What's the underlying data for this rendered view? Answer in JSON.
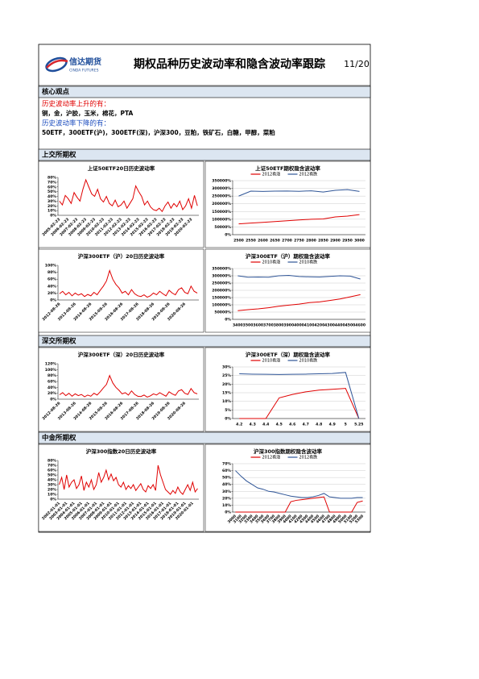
{
  "header": {
    "logo_cn": "信达期货",
    "logo_en": "CINDA FUTURES",
    "title": "期权品种历史波动率和隐含波动率跟踪",
    "date": "11/20"
  },
  "core": {
    "heading": "核心观点",
    "rise_label": "历史波动率上升的有：",
    "rise_items": "铜，金，沪胶，玉米，棉花，PTA",
    "fall_label": "历史波动率下降的有：",
    "fall_items": "50ETF，300ETF(沪)，300ETF(深)，沪深300，豆粕，铁矿石，白糖，甲醇，菜粕"
  },
  "sections": [
    "上交所期权",
    "深交所期权",
    "中金所期权"
  ],
  "chart_data": [
    {
      "type": "line",
      "title": "上证50ETF20日历史波动率",
      "color": "#e00000",
      "grid": false,
      "categories": [
        "2005-02-23",
        null,
        null,
        "2006-02-23",
        null,
        null,
        "2007-02-23",
        null,
        null,
        "2008-02-23",
        null,
        null,
        "2009-02-23",
        null,
        null,
        "2010-02-23",
        null,
        null,
        "2011-02-23",
        null,
        null,
        "2012-02-23",
        null,
        null,
        "2013-02-23",
        null,
        null,
        "2014-02-23",
        null,
        null,
        "2015-02-23",
        null,
        null,
        "2016-02-23",
        null,
        null,
        "2017-02-23",
        null,
        null,
        "2018-02-23",
        null,
        null,
        "2019-02-23",
        null,
        null,
        "2020-02-23",
        null,
        null
      ],
      "values": [
        30,
        22,
        42,
        35,
        25,
        48,
        38,
        30,
        55,
        75,
        60,
        45,
        40,
        55,
        35,
        28,
        40,
        25,
        20,
        32,
        18,
        22,
        30,
        15,
        25,
        35,
        62,
        50,
        40,
        22,
        30,
        18,
        12,
        10,
        15,
        8,
        20,
        28,
        15,
        25,
        18,
        30,
        12,
        20,
        35,
        15,
        42,
        20
      ],
      "ylim": [
        0,
        80
      ],
      "yticks": [
        {
          "value": 0,
          "label": "0%"
        },
        {
          "value": 10,
          "label": "10%"
        },
        {
          "value": 20,
          "label": "20%"
        },
        {
          "value": 30,
          "label": "30%"
        },
        {
          "value": 40,
          "label": "40%"
        },
        {
          "value": 50,
          "label": "50%"
        },
        {
          "value": 60,
          "label": "60%"
        },
        {
          "value": 70,
          "label": "70%"
        },
        {
          "value": 80,
          "label": "80%"
        }
      ]
    },
    {
      "type": "line",
      "title": "上证50ETF期权隐含波动率",
      "grid": true,
      "categories": [
        "2500",
        "2550",
        "2600",
        "2650",
        "2700",
        "2750",
        "2800",
        "2850",
        "2900",
        "2950",
        "3000"
      ],
      "series": [
        {
          "name": "2012看涨",
          "color": "#e00000",
          "values": [
            70000,
            75000,
            80000,
            85000,
            90000,
            95000,
            100000,
            102000,
            115000,
            120000,
            130000
          ]
        },
        {
          "name": "2012看跌",
          "color": "#2f5597",
          "values": [
            250000,
            282000,
            280000,
            282000,
            283000,
            281000,
            284000,
            276000,
            287000,
            292000,
            280000
          ]
        }
      ],
      "ylim": [
        0,
        350000
      ],
      "yticks": [
        {
          "value": 0,
          "label": "0%"
        },
        {
          "value": 50000,
          "label": "50000%"
        },
        {
          "value": 100000,
          "label": "100000%"
        },
        {
          "value": 150000,
          "label": "150000%"
        },
        {
          "value": 200000,
          "label": "200000%"
        },
        {
          "value": 250000,
          "label": "250000%"
        },
        {
          "value": 300000,
          "label": "300000%"
        },
        {
          "value": 350000,
          "label": "350000%"
        }
      ]
    },
    {
      "type": "line",
      "title": "沪深300ETF（沪）20日历史波动率",
      "color": "#e00000",
      "grid": false,
      "categories": [
        "2012-08-26",
        null,
        null,
        null,
        null,
        "2013-08-26",
        null,
        null,
        null,
        null,
        "2014-08-26",
        null,
        null,
        null,
        null,
        "2015-08-26",
        null,
        null,
        null,
        null,
        "2016-08-26",
        null,
        null,
        null,
        null,
        "2017-08-26",
        null,
        null,
        null,
        null,
        "2018-08-26",
        null,
        null,
        null,
        null,
        "2019-08-26",
        null,
        null,
        null,
        null,
        "2020-08-26",
        null,
        null,
        null,
        null
      ],
      "values": [
        18,
        25,
        15,
        22,
        12,
        20,
        14,
        18,
        10,
        16,
        12,
        22,
        15,
        28,
        40,
        55,
        85,
        60,
        45,
        35,
        20,
        25,
        15,
        30,
        18,
        12,
        10,
        15,
        8,
        12,
        20,
        15,
        25,
        18,
        12,
        28,
        20,
        15,
        30,
        35,
        22,
        18,
        40,
        25,
        20
      ],
      "ylim": [
        0,
        100
      ],
      "yticks": [
        {
          "value": 0,
          "label": "0%"
        },
        {
          "value": 20,
          "label": "20%"
        },
        {
          "value": 40,
          "label": "40%"
        },
        {
          "value": 60,
          "label": "60%"
        },
        {
          "value": 80,
          "label": "80%"
        },
        {
          "value": 100,
          "label": "100%"
        }
      ]
    },
    {
      "type": "line",
      "title": "沪深300ETF（沪）期权隐含波动率",
      "grid": true,
      "categories": [
        "3400",
        "3500",
        "3600",
        "3700",
        "3800",
        "3900",
        "4000",
        "4100",
        "4200",
        "4300",
        "4400",
        "4500",
        "4600"
      ],
      "series": [
        {
          "name": "2010看涨",
          "color": "#e00000",
          "values": [
            60000,
            67000,
            72000,
            80000,
            90000,
            98000,
            105000,
            115000,
            120000,
            130000,
            140000,
            155000,
            170000
          ]
        },
        {
          "name": "2010看跌",
          "color": "#2f5597",
          "values": [
            300000,
            290000,
            292000,
            290000,
            300000,
            303000,
            295000,
            293000,
            292000,
            296000,
            300000,
            298000,
            278000
          ]
        }
      ],
      "ylim": [
        0,
        350000
      ],
      "yticks": [
        {
          "value": 0,
          "label": "0%"
        },
        {
          "value": 50000,
          "label": "50000%"
        },
        {
          "value": 100000,
          "label": "100000%"
        },
        {
          "value": 150000,
          "label": "150000%"
        },
        {
          "value": 200000,
          "label": "200000%"
        },
        {
          "value": 250000,
          "label": "250000%"
        },
        {
          "value": 300000,
          "label": "300000%"
        },
        {
          "value": 350000,
          "label": "350000%"
        }
      ]
    },
    {
      "type": "line",
      "title": "沪深300ETF（深）20日历史波动率",
      "color": "#e00000",
      "grid": false,
      "categories": [
        "2012-08-26",
        null,
        null,
        null,
        null,
        "2013-08-26",
        null,
        null,
        null,
        null,
        "2014-08-26",
        null,
        null,
        null,
        null,
        "2015-08-26",
        null,
        null,
        null,
        null,
        "2016-08-26",
        null,
        null,
        null,
        null,
        "2017-08-26",
        null,
        null,
        null,
        null,
        "2018-08-26",
        null,
        null,
        null,
        null,
        "2019-08-26",
        null,
        null,
        null,
        null,
        "2020-08-26",
        null,
        null,
        null,
        null
      ],
      "values": [
        15,
        22,
        12,
        20,
        10,
        18,
        12,
        16,
        8,
        14,
        10,
        20,
        14,
        25,
        38,
        50,
        80,
        55,
        40,
        30,
        18,
        22,
        14,
        28,
        16,
        10,
        9,
        14,
        7,
        11,
        18,
        14,
        22,
        16,
        10,
        25,
        18,
        13,
        28,
        32,
        20,
        16,
        36,
        22,
        18
      ],
      "ylim": [
        0,
        120
      ],
      "yticks": [
        {
          "value": 0,
          "label": "0%"
        },
        {
          "value": 20,
          "label": "20%"
        },
        {
          "value": 40,
          "label": "40%"
        },
        {
          "value": 60,
          "label": "60%"
        },
        {
          "value": 80,
          "label": "80%"
        },
        {
          "value": 100,
          "label": "100%"
        },
        {
          "value": 120,
          "label": "120%"
        }
      ]
    },
    {
      "type": "line",
      "title": "沪深300ETF（深）期权隐含波动率",
      "grid": true,
      "categories": [
        "4.2",
        "4.3",
        "4.4",
        "4.5",
        "4.6",
        "4.7",
        "4.8",
        "4.9",
        "5",
        "5.25"
      ],
      "series": [
        {
          "name": "2010看涨",
          "color": "#e00000",
          "values": [
            0,
            0,
            0,
            12,
            14,
            15.5,
            16.5,
            17,
            17.5,
            0
          ]
        },
        {
          "name": "2010看跌",
          "color": "#2f5597",
          "values": [
            26,
            25.8,
            25.7,
            25.6,
            25.7,
            25.8,
            26,
            26.2,
            26.8,
            0
          ]
        }
      ],
      "ylim": [
        0,
        30
      ],
      "yticks": [
        {
          "value": 0,
          "label": "0%"
        },
        {
          "value": 5,
          "label": "5%"
        },
        {
          "value": 10,
          "label": "10%"
        },
        {
          "value": 15,
          "label": "15%"
        },
        {
          "value": 20,
          "label": "20%"
        },
        {
          "value": 25,
          "label": "25%"
        },
        {
          "value": 30,
          "label": "30%"
        }
      ]
    },
    {
      "type": "line",
      "title": "沪深300指数20日历史波动率",
      "color": "#e00000",
      "grid": false,
      "categories": [
        "2002-01-01",
        null,
        null,
        "2003-01-01",
        null,
        null,
        "2004-01-01",
        null,
        null,
        "2005-01-01",
        null,
        null,
        "2006-01-01",
        null,
        null,
        "2007-01-01",
        null,
        null,
        "2008-01-01",
        null,
        null,
        "2009-01-01",
        null,
        null,
        "2010-01-01",
        null,
        null,
        "2011-01-01",
        null,
        null,
        "2012-01-01",
        null,
        null,
        "2013-01-01",
        null,
        null,
        "2014-01-01",
        null,
        null,
        "2015-01-01",
        null,
        null,
        "2016-01-01",
        null,
        null,
        "2017-01-01",
        null,
        null,
        "2018-01-01",
        null,
        null,
        "2019-01-01",
        null,
        null,
        "2020-01-01",
        null,
        null
      ],
      "values": [
        30,
        45,
        20,
        50,
        25,
        35,
        40,
        22,
        30,
        48,
        18,
        35,
        25,
        40,
        20,
        30,
        55,
        35,
        45,
        60,
        40,
        52,
        38,
        45,
        30,
        25,
        35,
        20,
        28,
        22,
        30,
        18,
        25,
        32,
        20,
        15,
        28,
        22,
        30,
        18,
        70,
        50,
        35,
        20,
        15,
        10,
        18,
        12,
        25,
        15,
        10,
        20,
        30,
        18,
        35,
        15,
        22
      ],
      "ylim": [
        0,
        80
      ],
      "yticks": [
        {
          "value": 0,
          "label": "0%"
        },
        {
          "value": 10,
          "label": "10%"
        },
        {
          "value": 20,
          "label": "20%"
        },
        {
          "value": 30,
          "label": "30%"
        },
        {
          "value": 40,
          "label": "40%"
        },
        {
          "value": 50,
          "label": "50%"
        },
        {
          "value": 60,
          "label": "60%"
        },
        {
          "value": 70,
          "label": "70%"
        },
        {
          "value": 80,
          "label": "80%"
        }
      ]
    },
    {
      "type": "line",
      "title": "沪深300指数期权隐含波动率",
      "grid": true,
      "categories": [
        "3000",
        "3100",
        "3200",
        "3300",
        "3400",
        "3500",
        "3600",
        "3700",
        "3800",
        "3900",
        "4000",
        "4100",
        "4200",
        "4300",
        "4400",
        "4500",
        "4600",
        "4700",
        "4800",
        "4900",
        "5000",
        "5100",
        "5200",
        "5300"
      ],
      "series": [
        {
          "name": "2012看涨",
          "color": "#e00000",
          "values": [
            0,
            0,
            0,
            0,
            0,
            0,
            0,
            0,
            0,
            0,
            15,
            17,
            18,
            19,
            20,
            21,
            22,
            0,
            0,
            0,
            0,
            0,
            14,
            16
          ]
        },
        {
          "name": "2012看跌",
          "color": "#2f5597",
          "values": [
            60,
            52,
            45,
            40,
            35,
            33,
            30,
            29,
            27,
            25,
            23,
            22,
            21,
            21,
            22,
            24,
            27,
            22,
            21,
            20,
            20,
            20,
            21,
            21
          ]
        }
      ],
      "ylim": [
        0,
        70
      ],
      "yticks": [
        {
          "value": 0,
          "label": "0%"
        },
        {
          "value": 10,
          "label": "10%"
        },
        {
          "value": 20,
          "label": "20%"
        },
        {
          "value": 30,
          "label": "30%"
        },
        {
          "value": 40,
          "label": "40%"
        },
        {
          "value": 50,
          "label": "50%"
        },
        {
          "value": 60,
          "label": "60%"
        },
        {
          "value": 70,
          "label": "70%"
        }
      ]
    }
  ]
}
